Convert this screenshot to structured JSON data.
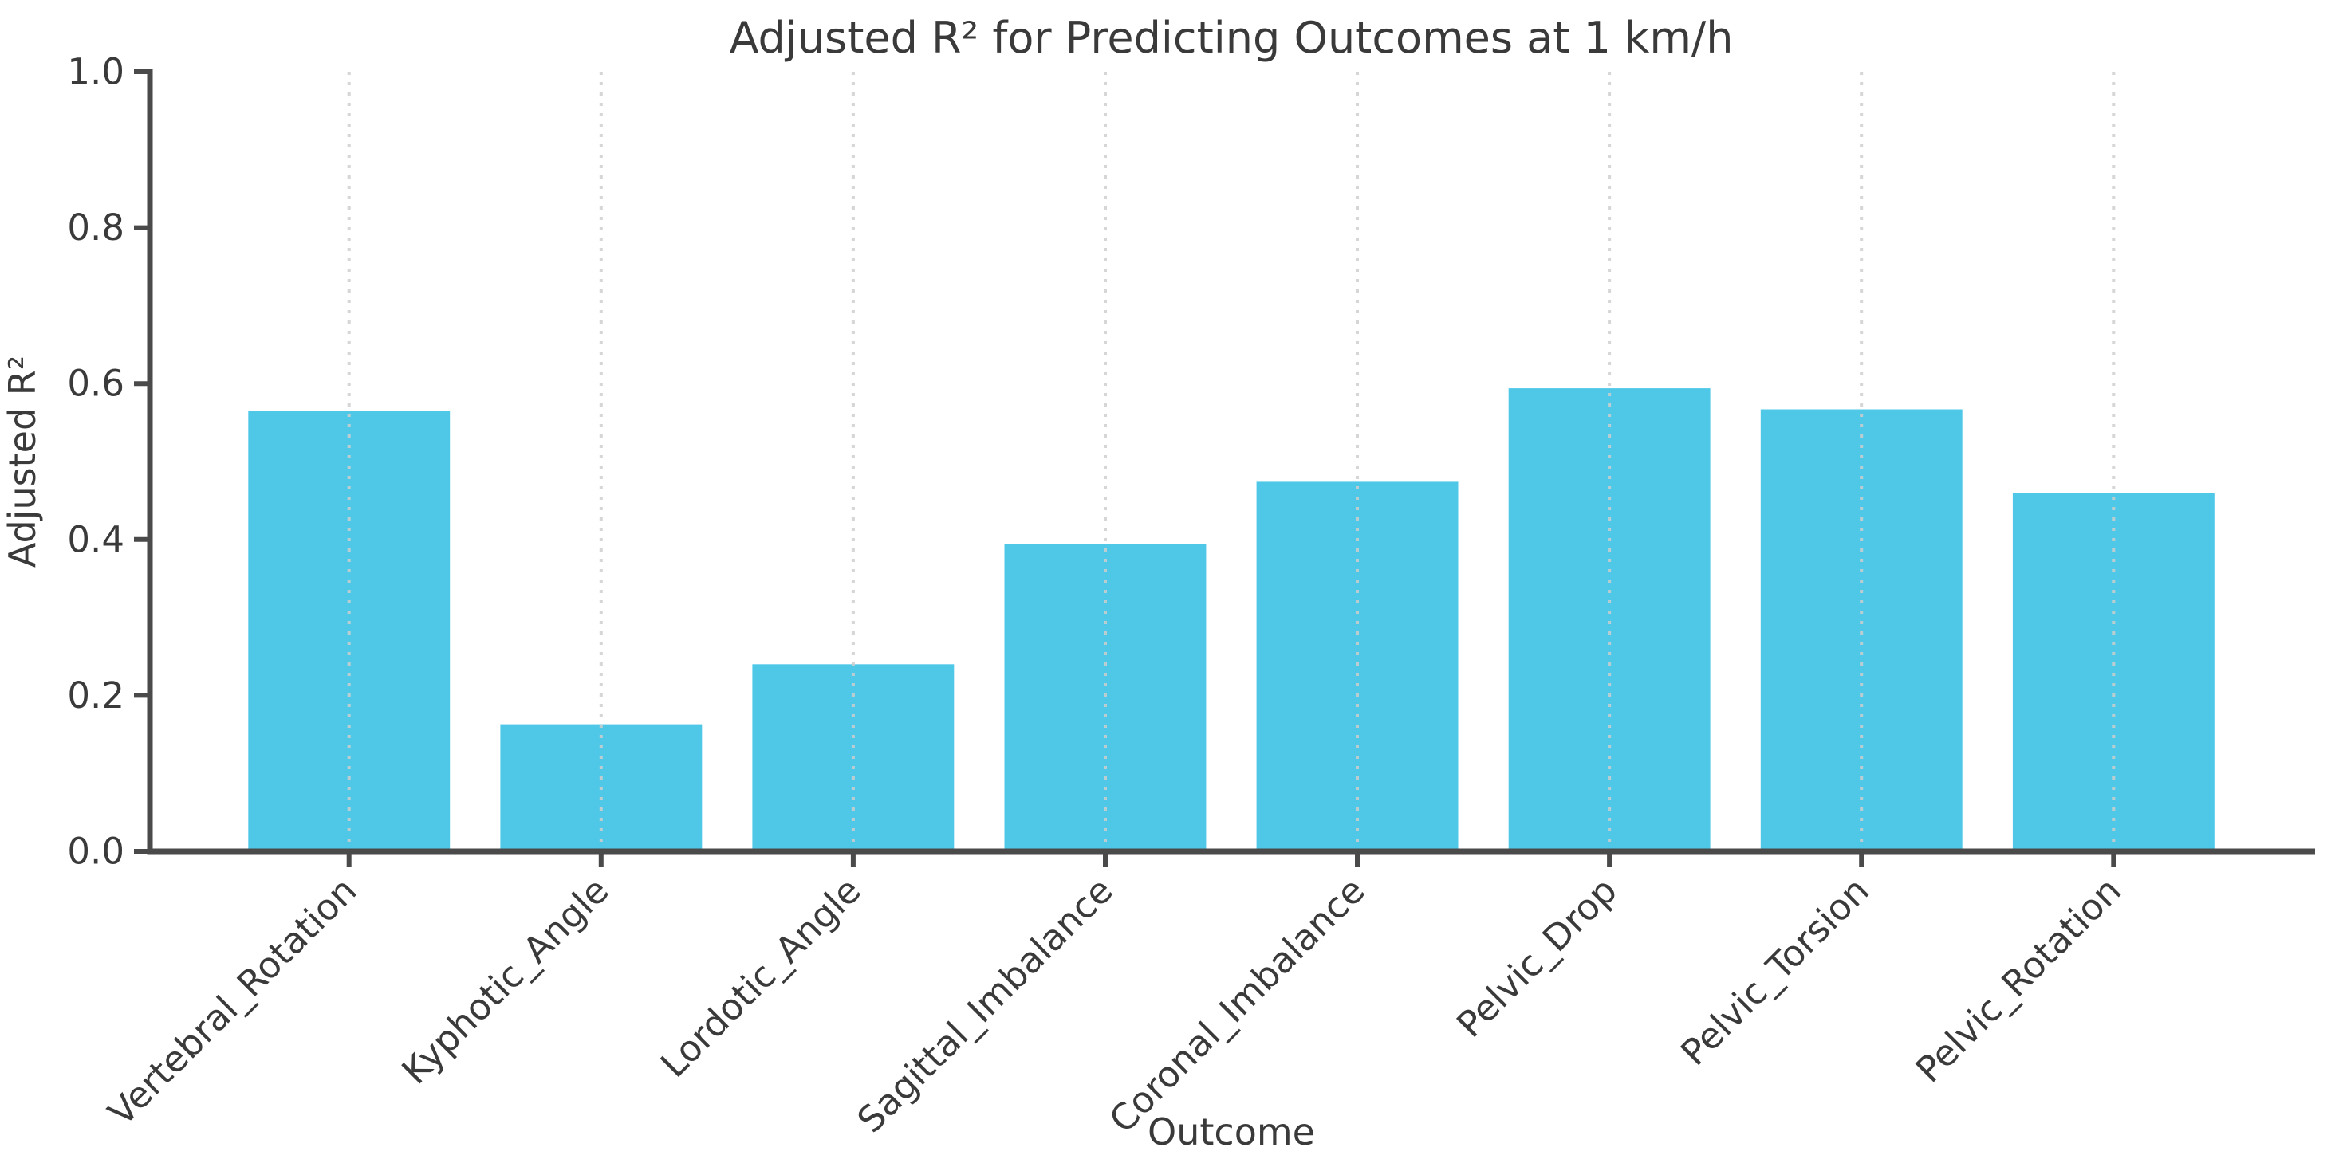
{
  "chart_data": {
    "type": "bar",
    "title": "Adjusted R² for Predicting Outcomes at 1 km/h",
    "xlabel": "Outcome",
    "ylabel": "Adjusted R²",
    "categories": [
      "Vertebral_Rotation",
      "Kyphotic_Angle",
      "Lordotic_Angle",
      "Sagittal_Imbalance",
      "Coronal_Imbalance",
      "Pelvic_Drop",
      "Pelvic_Torsion",
      "Pelvic_Rotation"
    ],
    "values": [
      0.565,
      0.163,
      0.24,
      0.394,
      0.474,
      0.594,
      0.567,
      0.46
    ],
    "ylim": [
      0.0,
      1.0
    ],
    "yticks": [
      0.0,
      0.2,
      0.4,
      0.6,
      0.8,
      1.0
    ],
    "ytick_labels": [
      "0.0",
      "0.2",
      "0.4",
      "0.6",
      "0.8",
      "1.0"
    ],
    "xtick_rotation_deg": 45,
    "grid": "vertical dotted at bar centers, drawn over bars",
    "legend": "none",
    "colors": {
      "bar_fill": "#4FC8E8",
      "axis": "#4a4a4a",
      "text": "#3a3a3a",
      "grid": "#cfcfcf",
      "background": "#ffffff"
    }
  }
}
